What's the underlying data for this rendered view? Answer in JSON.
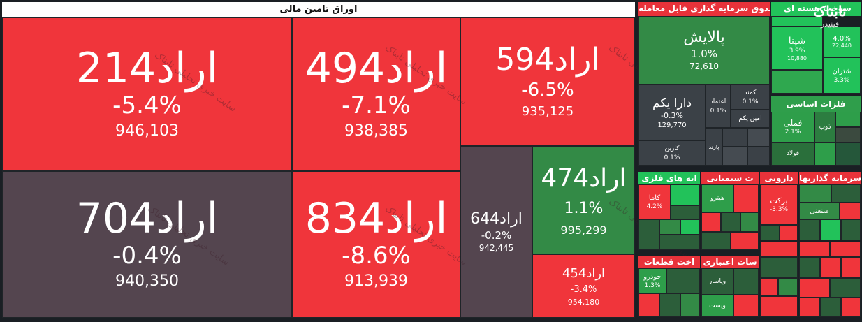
{
  "groups": {
    "tamin": "اوراق تامین مالی",
    "sandogh": "صندوق سرمایه گذاری قابل معامله",
    "sookht": "سوخت هسته ای",
    "felezat": "فلزات اساسی",
    "ghazi": "انه های فلزی",
    "shimiyayi": "ت شیمیایی",
    "darooyi": "دارویی",
    "sarmaye": "سرمایه گذاریها",
    "ghataat": "اخت قطعات",
    "etebari": "سات اعتباری"
  },
  "tiles": {
    "arad214": {
      "sym": "اراد214",
      "pct": "-5.4%",
      "vol": "946,103"
    },
    "arad494": {
      "sym": "اراد494",
      "pct": "-7.1%",
      "vol": "938,385"
    },
    "arad594": {
      "sym": "اراد594",
      "pct": "-6.5%",
      "vol": "935,125"
    },
    "arad704": {
      "sym": "اراد704",
      "pct": "-0.4%",
      "vol": "940,350"
    },
    "arad834": {
      "sym": "اراد834",
      "pct": "-8.6%",
      "vol": "913,939"
    },
    "arad644": {
      "sym": "اراد644",
      "pct": "-0.2%",
      "vol": "942,445"
    },
    "arad474": {
      "sym": "اراد474",
      "pct": "1.1%",
      "vol": "995,299"
    },
    "arad454": {
      "sym": "اراد454",
      "pct": "-3.4%",
      "vol": "954,180"
    },
    "palayesh": {
      "sym": "پالایش",
      "pct": "1.0%",
      "vol": "72,610"
    },
    "darayekom": {
      "sym": "دارا یکم",
      "pct": "-0.3%",
      "vol": "129,770"
    },
    "shepna": {
      "sym": "شپنا",
      "pct": "3.9%",
      "vol": "10,880"
    },
    "shepna_side": {
      "pct": "4.0%",
      "vol": "22,440"
    },
    "shetran": {
      "sym": "شتران",
      "pct": "3.3%"
    },
    "fameli": {
      "sym": "فملی",
      "pct": "2.1%"
    },
    "kama": {
      "sym": "کاما",
      "pct": "4.2%"
    },
    "barkat": {
      "sym": "برکت",
      "pct": "-3.3%"
    },
    "khodro": {
      "sym": "خودرو",
      "pct": "1.3%"
    }
  },
  "small_labels": {
    "kamand": "کمند",
    "kamand_pct": "0.1%",
    "etemad": "اعتماد",
    "etemad_pct": "0.1%",
    "aminyekom": "امین یکم",
    "karin": "کارین",
    "karin_pct": "0.1%",
    "parand": "پارند",
    "zob": "ذوب",
    "foolad": "فولاد",
    "hitro": "هیترو",
    "sanati": "صنعتی",
    "vepasar": "وپاسار",
    "vist": "ویست"
  },
  "watermark": "سایت خبری تحلیلی تابناک",
  "logo": {
    "line1": "تابناک",
    "line2": "فینیدر"
  },
  "colors": {
    "negative": "#f0353b",
    "neutral": "#54454f",
    "positive": "#338a46",
    "strong_positive": "#22c25a"
  }
}
